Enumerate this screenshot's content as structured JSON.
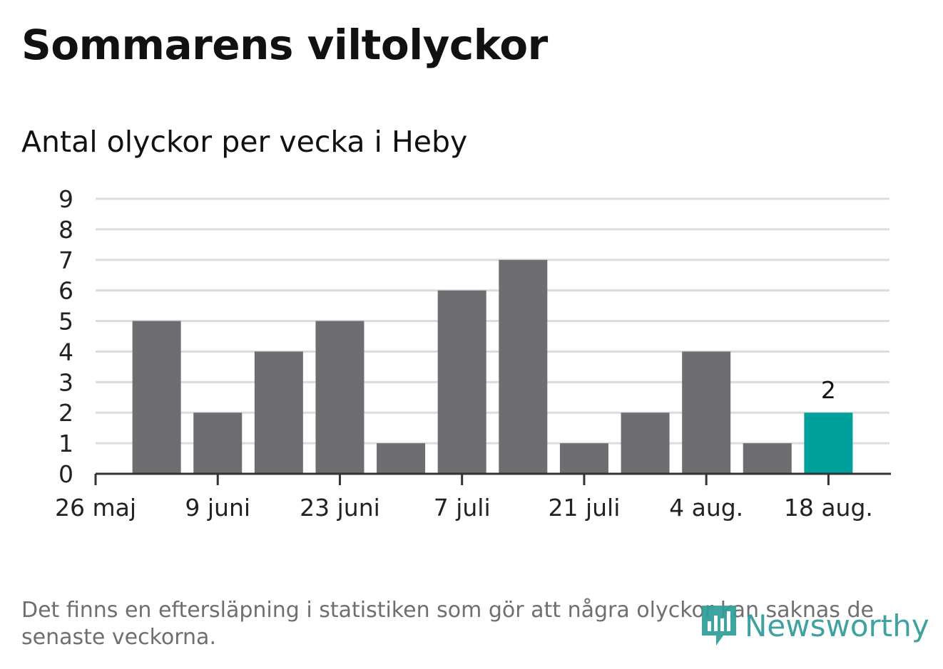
{
  "header": {
    "title": "Sommarens viltolyckor",
    "subtitle": "Antal olyckor per vecka i Heby"
  },
  "chart_data": {
    "type": "bar",
    "title": "Sommarens viltolyckor",
    "subtitle": "Antal olyckor per vecka i Heby",
    "xlabel": "",
    "ylabel": "",
    "ylim": [
      0,
      9
    ],
    "yticks": [
      0,
      1,
      2,
      3,
      4,
      5,
      6,
      7,
      8,
      9
    ],
    "xtick_labels": [
      "26 maj",
      "9 juni",
      "23 juni",
      "7 juli",
      "21 juli",
      "4 aug.",
      "18 aug."
    ],
    "values": [
      5,
      2,
      4,
      5,
      1,
      6,
      7,
      1,
      2,
      4,
      1,
      2
    ],
    "highlight_index": 11,
    "highlight_label": "2",
    "grid": true,
    "legend": "none",
    "colors": {
      "bar": "#6e6d72",
      "highlight": "#00a19a",
      "grid": "#dcdcdc",
      "axis": "#333333"
    }
  },
  "footer": {
    "note": "Det finns en eftersläpning i statistiken som gör att några olyckor kan saknas de senaste veckorna.",
    "brand": "Newsworthy",
    "brand_icon": "newsworthy-logo-icon"
  }
}
